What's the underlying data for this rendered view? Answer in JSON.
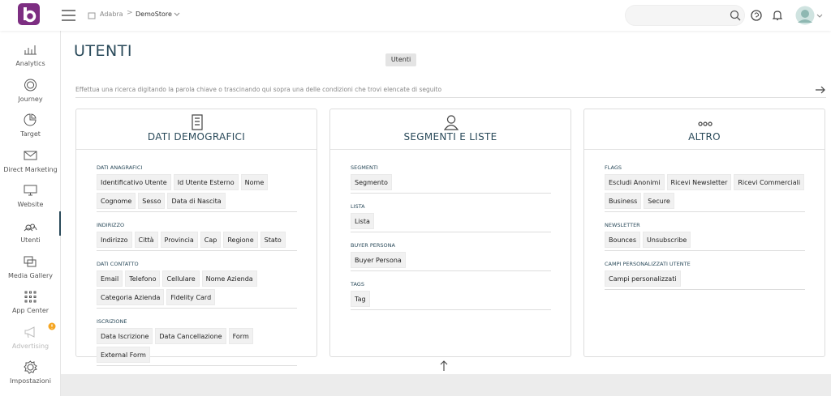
{
  "header": {
    "breadcrumb": [
      "Adabra",
      "DemoStore"
    ]
  },
  "sidebar": {
    "items": [
      "Analytics",
      "Journey",
      "Target",
      "Direct Marketing",
      "Website",
      "Utenti",
      "Media Gallery",
      "App Center",
      "Advertising",
      "Impostazioni"
    ]
  },
  "page": {
    "title": "UTENTI",
    "tooltip": "Utenti",
    "search_placeholder": "Effettua una ricerca digitando la parola chiave o trascinando qui sopra una delle condizioni che trovi elencate di seguito"
  },
  "cards": [
    {
      "title": "DATI DEMOGRAFICI",
      "groups": [
        {
          "label": "DATI ANAGRAFICI",
          "chips": [
            "Identificativo Utente",
            "Id Utente Esterno",
            "Nome",
            "Cognome",
            "Sesso",
            "Data di Nascita"
          ]
        },
        {
          "label": "INDIRIZZO",
          "chips": [
            "Indirizzo",
            "Città",
            "Provincia",
            "Cap",
            "Regione",
            "Stato"
          ]
        },
        {
          "label": "DATI CONTATTO",
          "chips": [
            "Email",
            "Telefono",
            "Cellulare",
            "Nome Azienda",
            "Categoria Azienda",
            "Fidelity Card"
          ]
        },
        {
          "label": "ISCRIZIONE",
          "chips": [
            "Data Iscrizione",
            "Data Cancellazione",
            "Form",
            "External Form"
          ]
        }
      ]
    },
    {
      "title": "SEGMENTI E LISTE",
      "groups": [
        {
          "label": "SEGMENTI",
          "chips": [
            "Segmento"
          ]
        },
        {
          "label": "LISTA",
          "chips": [
            "Lista"
          ]
        },
        {
          "label": "BUYER PERSONA",
          "chips": [
            "Buyer Persona"
          ]
        },
        {
          "label": "TAGS",
          "chips": [
            "Tag"
          ]
        }
      ]
    },
    {
      "title": "ALTRO",
      "groups": [
        {
          "label": "FLAGS",
          "chips": [
            "Escludi Anonimi",
            "Ricevi Newsletter",
            "Ricevi Commerciali",
            "Business",
            "Secure"
          ]
        },
        {
          "label": "NEWSLETTER",
          "chips": [
            "Bounces",
            "Unsubscribe"
          ]
        },
        {
          "label": "CAMPI PERSONALIZZATI UTENTE",
          "chips": [
            "Campi personalizzati"
          ]
        }
      ]
    }
  ]
}
